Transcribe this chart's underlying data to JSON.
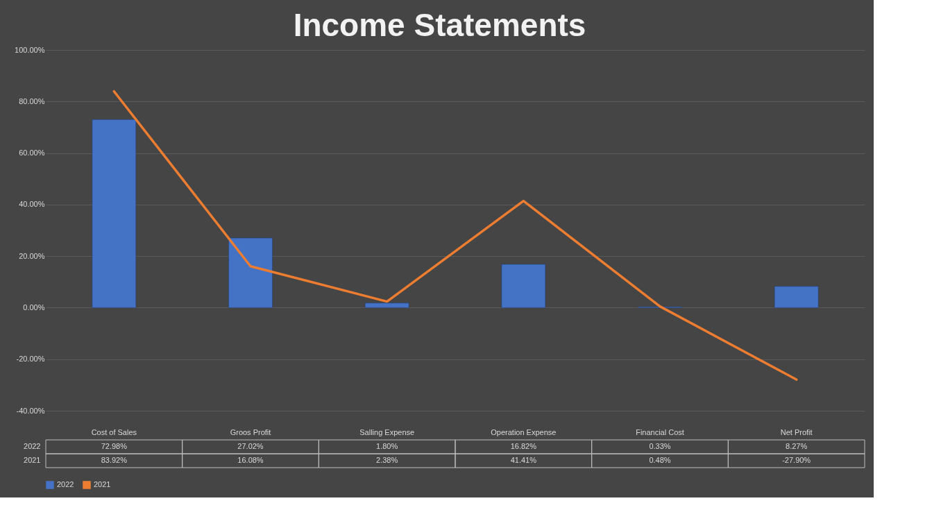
{
  "chart_data": {
    "type": "bar",
    "title": "Income Statements",
    "categories": [
      "Cost of Sales",
      "Groos Profit",
      "Salling Expense",
      "Operation Expense",
      "Financial Cost",
      "Net Profit"
    ],
    "series": [
      {
        "name": "2022",
        "color": "#4472c4",
        "values": [
          72.98,
          27.02,
          1.8,
          16.82,
          0.33,
          8.27
        ],
        "value_labels": [
          "72.98%",
          "27.02%",
          "1.80%",
          "16.82%",
          "0.33%",
          "8.27%"
        ]
      },
      {
        "name": "2021",
        "type": "line",
        "color": "#ed7d31",
        "values": [
          83.92,
          16.08,
          2.38,
          41.41,
          0.48,
          -27.9
        ],
        "value_labels": [
          "83.92%",
          "16.08%",
          "2.38%",
          "41.41%",
          "0.48%",
          "-27.90%"
        ]
      }
    ],
    "ylim": [
      -40,
      100
    ],
    "yticks": [
      {
        "value": -40,
        "label": "-40.00%"
      },
      {
        "value": -20,
        "label": "-20.00%"
      },
      {
        "value": 0,
        "label": "0.00%"
      },
      {
        "value": 20,
        "label": "20.00%"
      },
      {
        "value": 40,
        "label": "40.00%"
      },
      {
        "value": 60,
        "label": "60.00%"
      },
      {
        "value": 80,
        "label": "80.00%"
      },
      {
        "value": 100,
        "label": "100.00%"
      }
    ],
    "grid": "y",
    "legend": "bottom"
  }
}
